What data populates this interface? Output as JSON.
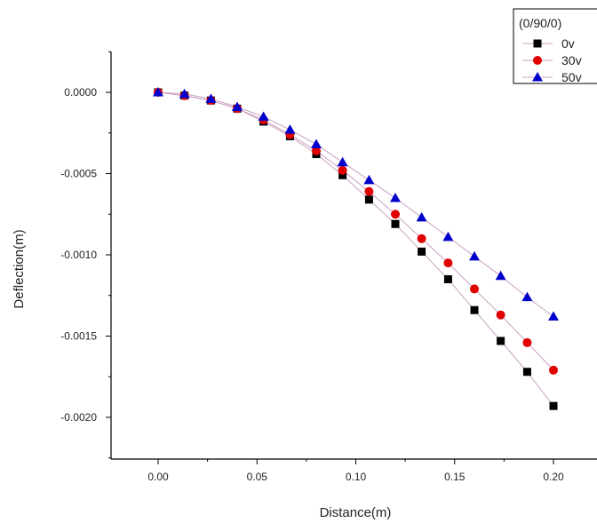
{
  "chart_data": {
    "type": "line",
    "xlabel": "Distance(m)",
    "ylabel": "Deflection(m)",
    "xlim": [
      -0.03,
      0.22
    ],
    "ylim": [
      -0.00225,
      0.00025
    ],
    "x_ticks": [
      0.0,
      0.05,
      0.1,
      0.15,
      0.2
    ],
    "x_tick_labels": [
      "0.00",
      "0.05",
      "0.10",
      "0.15",
      "0.20"
    ],
    "y_ticks": [
      0.0,
      -0.0005,
      -0.001,
      -0.0015,
      -0.002
    ],
    "y_tick_labels": [
      "0.0000",
      "-0.0005",
      "-0.0010",
      "-0.0015",
      "-0.0020"
    ],
    "grid": false,
    "legend": {
      "title": "(0/90/0)",
      "placement": "top-right",
      "entries": [
        "0v",
        "30v",
        "50v"
      ]
    },
    "x": [
      0.0,
      0.0133,
      0.0267,
      0.04,
      0.0533,
      0.0667,
      0.08,
      0.0933,
      0.1067,
      0.12,
      0.1333,
      0.1467,
      0.16,
      0.1733,
      0.1867,
      0.2
    ],
    "series": [
      {
        "name": "0v",
        "marker": "square",
        "color": "#000000",
        "values": [
          0.0,
          -2e-05,
          -5e-05,
          -0.0001,
          -0.00018,
          -0.00027,
          -0.00038,
          -0.00051,
          -0.00066,
          -0.00081,
          -0.00098,
          -0.00115,
          -0.00134,
          -0.00153,
          -0.00172,
          -0.00193
        ]
      },
      {
        "name": "30v",
        "marker": "circle",
        "color": "#e00000",
        "values": [
          0.0,
          -2e-05,
          -5e-05,
          -0.0001,
          -0.00017,
          -0.00026,
          -0.00036,
          -0.00048,
          -0.00061,
          -0.00075,
          -0.0009,
          -0.00105,
          -0.00121,
          -0.00137,
          -0.00154,
          -0.00171
        ]
      },
      {
        "name": "50v",
        "marker": "triangle",
        "color": "#0000cc",
        "values": [
          0.0,
          -1e-05,
          -4e-05,
          -9e-05,
          -0.00015,
          -0.00023,
          -0.00032,
          -0.00043,
          -0.00054,
          -0.00065,
          -0.00077,
          -0.00089,
          -0.00101,
          -0.00113,
          -0.00126,
          -0.00138
        ]
      }
    ]
  }
}
